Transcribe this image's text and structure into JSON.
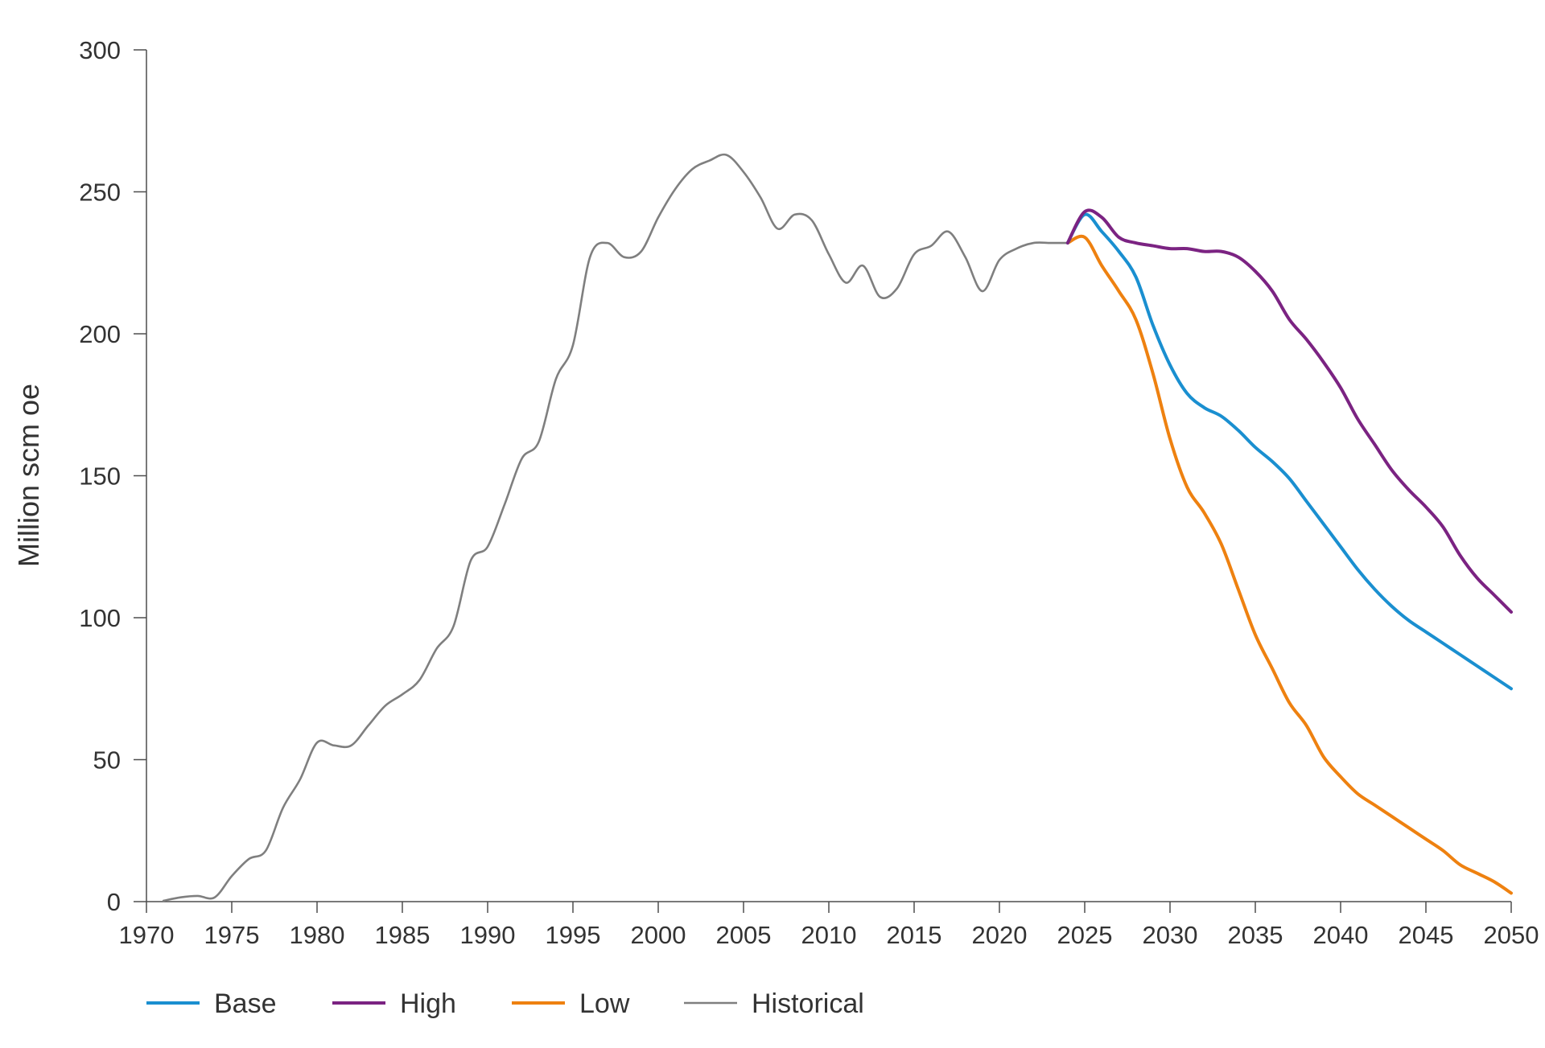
{
  "chart_data": {
    "type": "line",
    "title": "",
    "xlabel": "",
    "ylabel": "Million scm oe",
    "xlim": [
      1970,
      2050
    ],
    "ylim": [
      0,
      300
    ],
    "x_ticks": [
      "1970",
      "1975",
      "1980",
      "1985",
      "1990",
      "1995",
      "2000",
      "2005",
      "2010",
      "2015",
      "2020",
      "2025",
      "2030",
      "2035",
      "2040",
      "2045",
      "2050"
    ],
    "y_ticks": [
      "0",
      "50",
      "100",
      "150",
      "200",
      "250",
      "300"
    ],
    "grid": false,
    "legend_position": "bottom-left",
    "colors": {
      "axis": "#4d4d4d",
      "text": "#333333",
      "base": "#1a8fd0",
      "high": "#7b2382",
      "low": "#ee8110",
      "historical": "#7f7f7f"
    },
    "series": [
      {
        "name": "Base",
        "color": "#1a8fd0",
        "x": [
          2024,
          2025,
          2026,
          2027,
          2028,
          2029,
          2030,
          2031,
          2032,
          2033,
          2034,
          2035,
          2036,
          2037,
          2038,
          2039,
          2040,
          2041,
          2042,
          2043,
          2044,
          2045,
          2046,
          2047,
          2048,
          2049,
          2050
        ],
        "y": [
          232,
          242,
          236,
          229,
          220,
          203,
          189,
          179,
          174,
          171,
          166,
          160,
          155,
          149,
          141,
          133,
          125,
          117,
          110,
          104,
          99,
          95,
          91,
          87,
          83,
          79,
          75
        ]
      },
      {
        "name": "High",
        "color": "#7b2382",
        "x": [
          2024,
          2025,
          2026,
          2027,
          2028,
          2029,
          2030,
          2031,
          2032,
          2033,
          2034,
          2035,
          2036,
          2037,
          2038,
          2039,
          2040,
          2041,
          2042,
          2043,
          2044,
          2045,
          2046,
          2047,
          2048,
          2049,
          2050
        ],
        "y": [
          232,
          243,
          241,
          234,
          232,
          231,
          230,
          230,
          229,
          229,
          227,
          222,
          215,
          205,
          198,
          190,
          181,
          170,
          161,
          152,
          145,
          139,
          132,
          122,
          114,
          108,
          102
        ]
      },
      {
        "name": "Low",
        "color": "#ee8110",
        "x": [
          2024,
          2025,
          2026,
          2027,
          2028,
          2029,
          2030,
          2031,
          2032,
          2033,
          2034,
          2035,
          2036,
          2037,
          2038,
          2039,
          2040,
          2041,
          2042,
          2043,
          2044,
          2045,
          2046,
          2047,
          2048,
          2049,
          2050
        ],
        "y": [
          232,
          234,
          224,
          215,
          205,
          186,
          163,
          146,
          137,
          126,
          110,
          94,
          82,
          70,
          62,
          51,
          44,
          38,
          34,
          30,
          26,
          22,
          18,
          13,
          10,
          7,
          3
        ]
      },
      {
        "name": "Historical",
        "color": "#7f7f7f",
        "x": [
          1971,
          1972,
          1973,
          1974,
          1975,
          1976,
          1977,
          1978,
          1979,
          1980,
          1981,
          1982,
          1983,
          1984,
          1985,
          1986,
          1987,
          1988,
          1989,
          1990,
          1991,
          1992,
          1993,
          1994,
          1995,
          1996,
          1997,
          1998,
          1999,
          2000,
          2001,
          2002,
          2003,
          2004,
          2005,
          2006,
          2007,
          2008,
          2009,
          2010,
          2011,
          2012,
          2013,
          2014,
          2015,
          2016,
          2017,
          2018,
          2019,
          2020,
          2021,
          2022,
          2023,
          2024
        ],
        "y": [
          0.3,
          1.5,
          2,
          1.5,
          9,
          15,
          18,
          33,
          43,
          56,
          55,
          55,
          62,
          69,
          73,
          78,
          89,
          97,
          120,
          125,
          140,
          156,
          162,
          184,
          196,
          227,
          232,
          227,
          229,
          241,
          251,
          258,
          261,
          263,
          257,
          248,
          237,
          242,
          240,
          228,
          218,
          224,
          213,
          216,
          228,
          231,
          236,
          227,
          215,
          226,
          230,
          232,
          232,
          232
        ]
      }
    ]
  }
}
